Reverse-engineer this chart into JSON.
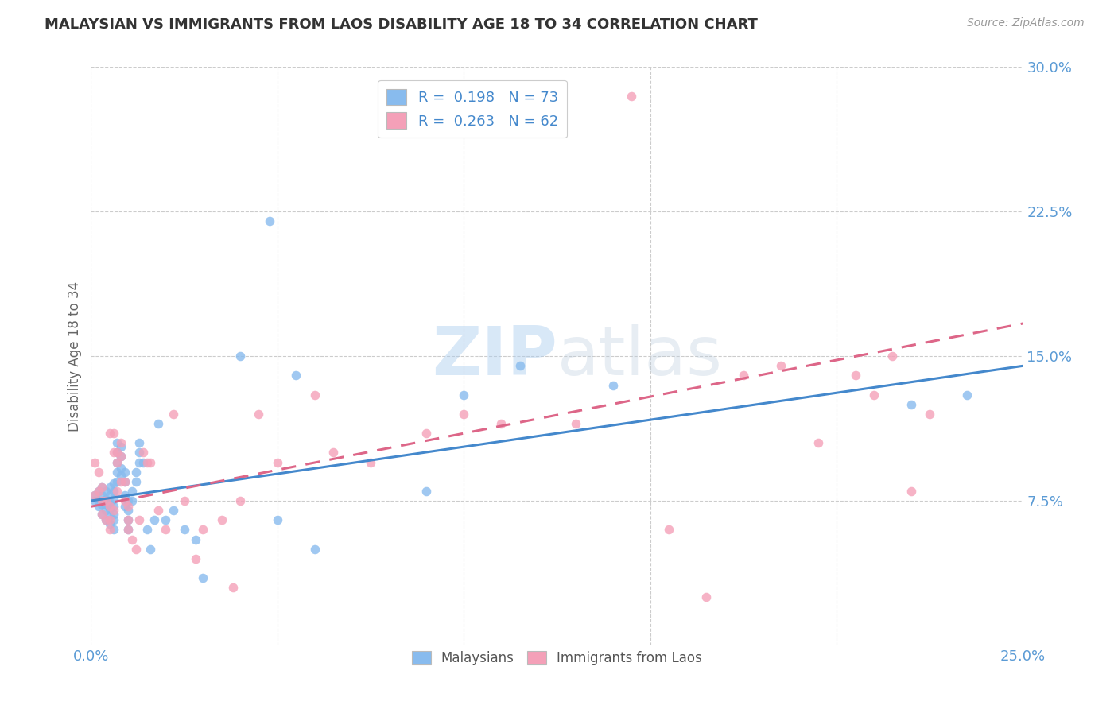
{
  "title": "MALAYSIAN VS IMMIGRANTS FROM LAOS DISABILITY AGE 18 TO 34 CORRELATION CHART",
  "source": "Source: ZipAtlas.com",
  "ylabel": "Disability Age 18 to 34",
  "xlim": [
    0.0,
    0.25
  ],
  "ylim": [
    0.0,
    0.3
  ],
  "yticks": [
    0.075,
    0.15,
    0.225,
    0.3
  ],
  "ytick_labels": [
    "7.5%",
    "15.0%",
    "22.5%",
    "30.0%"
  ],
  "xticks": [
    0.0,
    0.05,
    0.1,
    0.15,
    0.2,
    0.25
  ],
  "xtick_labels": [
    "0.0%",
    "",
    "",
    "",
    "",
    "25.0%"
  ],
  "color_blue": "#88bbee",
  "color_pink": "#f4a0b8",
  "line_color_blue": "#4488cc",
  "line_color_pink": "#dd6688",
  "background": "#ffffff",
  "legend_line1": "R =  0.198   N = 73",
  "legend_line2": "R =  0.263   N = 62",
  "legend_color": "#4488cc",
  "watermark_text": "ZIPatlas",
  "bottom_legend_1": "Malaysians",
  "bottom_legend_2": "Immigrants from Laos",
  "mal_intercept": 0.075,
  "mal_slope": 0.28,
  "laos_intercept": 0.072,
  "laos_slope": 0.38,
  "malaysians_x": [
    0.001,
    0.001,
    0.002,
    0.002,
    0.002,
    0.003,
    0.003,
    0.003,
    0.003,
    0.003,
    0.004,
    0.004,
    0.004,
    0.004,
    0.004,
    0.005,
    0.005,
    0.005,
    0.005,
    0.005,
    0.005,
    0.006,
    0.006,
    0.006,
    0.006,
    0.006,
    0.006,
    0.006,
    0.007,
    0.007,
    0.007,
    0.007,
    0.007,
    0.008,
    0.008,
    0.008,
    0.008,
    0.009,
    0.009,
    0.009,
    0.009,
    0.01,
    0.01,
    0.01,
    0.01,
    0.011,
    0.011,
    0.012,
    0.012,
    0.013,
    0.013,
    0.013,
    0.014,
    0.015,
    0.016,
    0.017,
    0.018,
    0.02,
    0.022,
    0.025,
    0.028,
    0.03,
    0.04,
    0.048,
    0.05,
    0.055,
    0.06,
    0.09,
    0.1,
    0.115,
    0.14,
    0.22,
    0.235
  ],
  "malaysians_y": [
    0.075,
    0.078,
    0.072,
    0.075,
    0.08,
    0.068,
    0.073,
    0.075,
    0.078,
    0.082,
    0.065,
    0.07,
    0.073,
    0.076,
    0.08,
    0.063,
    0.067,
    0.071,
    0.074,
    0.078,
    0.082,
    0.06,
    0.065,
    0.068,
    0.072,
    0.076,
    0.08,
    0.084,
    0.085,
    0.09,
    0.095,
    0.1,
    0.105,
    0.088,
    0.092,
    0.098,
    0.103,
    0.072,
    0.078,
    0.085,
    0.09,
    0.06,
    0.065,
    0.07,
    0.075,
    0.075,
    0.08,
    0.085,
    0.09,
    0.095,
    0.1,
    0.105,
    0.095,
    0.06,
    0.05,
    0.065,
    0.115,
    0.065,
    0.07,
    0.06,
    0.055,
    0.035,
    0.15,
    0.22,
    0.065,
    0.14,
    0.05,
    0.08,
    0.13,
    0.145,
    0.135,
    0.125,
    0.13
  ],
  "laos_x": [
    0.001,
    0.001,
    0.002,
    0.002,
    0.003,
    0.003,
    0.003,
    0.004,
    0.004,
    0.005,
    0.005,
    0.005,
    0.005,
    0.006,
    0.006,
    0.006,
    0.007,
    0.007,
    0.007,
    0.008,
    0.008,
    0.008,
    0.009,
    0.009,
    0.01,
    0.01,
    0.01,
    0.011,
    0.012,
    0.013,
    0.014,
    0.015,
    0.016,
    0.018,
    0.02,
    0.022,
    0.025,
    0.028,
    0.03,
    0.035,
    0.038,
    0.04,
    0.045,
    0.05,
    0.06,
    0.065,
    0.075,
    0.09,
    0.1,
    0.11,
    0.13,
    0.145,
    0.155,
    0.165,
    0.175,
    0.185,
    0.195,
    0.205,
    0.21,
    0.215,
    0.22,
    0.225
  ],
  "laos_y": [
    0.078,
    0.095,
    0.08,
    0.09,
    0.068,
    0.075,
    0.082,
    0.065,
    0.075,
    0.06,
    0.065,
    0.072,
    0.11,
    0.07,
    0.1,
    0.11,
    0.08,
    0.095,
    0.1,
    0.085,
    0.098,
    0.105,
    0.075,
    0.085,
    0.06,
    0.065,
    0.072,
    0.055,
    0.05,
    0.065,
    0.1,
    0.095,
    0.095,
    0.07,
    0.06,
    0.12,
    0.075,
    0.045,
    0.06,
    0.065,
    0.03,
    0.075,
    0.12,
    0.095,
    0.13,
    0.1,
    0.095,
    0.11,
    0.12,
    0.115,
    0.115,
    0.285,
    0.06,
    0.025,
    0.14,
    0.145,
    0.105,
    0.14,
    0.13,
    0.15,
    0.08,
    0.12
  ]
}
